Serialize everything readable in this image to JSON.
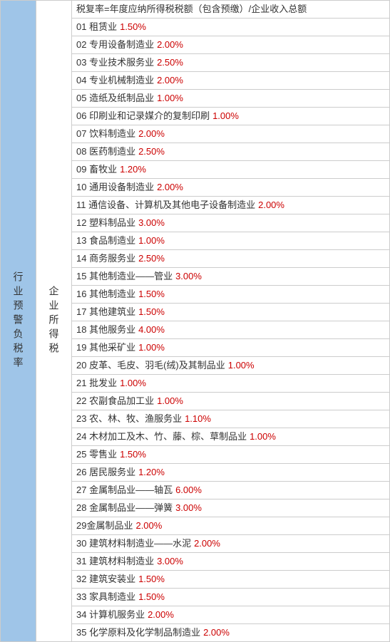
{
  "left_header": "行业预警负税率",
  "mid_header": "企业所得税",
  "formula": "税复率=年度应纳所得税税额（包含预缴）/企业收入总额",
  "rows": [
    {
      "no": "01",
      "name": "租赁业",
      "rate": "1.50%"
    },
    {
      "no": "02",
      "name": "专用设备制造业",
      "rate": "2.00%"
    },
    {
      "no": "03",
      "name": "专业技术服务业",
      "rate": "2.50%"
    },
    {
      "no": "04",
      "name": "专业机械制造业",
      "rate": "2.00%"
    },
    {
      "no": "05",
      "name": "造纸及纸制品业",
      "rate": "1.00%"
    },
    {
      "no": "06",
      "name": "印刷业和记录媒介的复制印刷",
      "rate": "1.00%"
    },
    {
      "no": "07",
      "name": "饮料制造业",
      "rate": "2.00%"
    },
    {
      "no": "08",
      "name": "医药制造业",
      "rate": "2.50%"
    },
    {
      "no": "09",
      "name": "畜牧业",
      "rate": "1.20%"
    },
    {
      "no": "10",
      "name": "通用设备制造业",
      "rate": "2.00%"
    },
    {
      "no": "11",
      "name": "通信设备、计算机及其他电子设备制造业",
      "rate": "2.00%"
    },
    {
      "no": "12",
      "name": "塑料制品业",
      "rate": "3.00%"
    },
    {
      "no": "13",
      "name": "食品制造业",
      "rate": "1.00%"
    },
    {
      "no": "14",
      "name": "商务服务业",
      "rate": "2.50%"
    },
    {
      "no": "15",
      "name": "其他制造业——管业",
      "rate": "3.00%"
    },
    {
      "no": "16",
      "name": "其他制造业",
      "rate": "1.50%"
    },
    {
      "no": "17",
      "name": "其他建筑业",
      "rate": "1.50%"
    },
    {
      "no": "18",
      "name": "其他服务业",
      "rate": "4.00%"
    },
    {
      "no": "19",
      "name": "其他采矿业",
      "rate": "1.00%"
    },
    {
      "no": "20",
      "name": "皮革、毛皮、羽毛(绒)及其制品业",
      "rate": "1.00%"
    },
    {
      "no": "21",
      "name": "批发业",
      "rate": "1.00%"
    },
    {
      "no": "22",
      "name": "农副食品加工业",
      "rate": "1.00%"
    },
    {
      "no": "23",
      "name": "农、林、牧、渔服务业",
      "rate": "1.10%"
    },
    {
      "no": "24",
      "name": "木材加工及木、竹、藤、棕、草制品业",
      "rate": "1.00%"
    },
    {
      "no": "25",
      "name": "零售业",
      "rate": "1.50%"
    },
    {
      "no": "26",
      "name": "居民服务业",
      "rate": "1.20%"
    },
    {
      "no": "27",
      "name": "金属制品业——轴瓦",
      "rate": "6.00%"
    },
    {
      "no": "28",
      "name": "金属制品业——弹簧",
      "rate": "3.00%"
    },
    {
      "no": "29",
      "name": "金属制品业",
      "rate": "2.00%",
      "nospace": true
    },
    {
      "no": "30",
      "name": "建筑材料制造业——水泥",
      "rate": "2.00%"
    },
    {
      "no": "31",
      "name": "建筑材料制造业",
      "rate": "3.00%"
    },
    {
      "no": "32",
      "name": "建筑安装业",
      "rate": "1.50%"
    },
    {
      "no": "33",
      "name": "家具制造业",
      "rate": "1.50%"
    },
    {
      "no": "34",
      "name": "计算机服务业",
      "rate": "2.00%"
    },
    {
      "no": "35",
      "name": "化学原料及化学制品制造业",
      "rate": "2.00%"
    }
  ],
  "colors": {
    "header_bg": "#9fc5e8",
    "rate_color": "#cc0000",
    "border_color": "#cccccc",
    "text_color": "#333333"
  }
}
